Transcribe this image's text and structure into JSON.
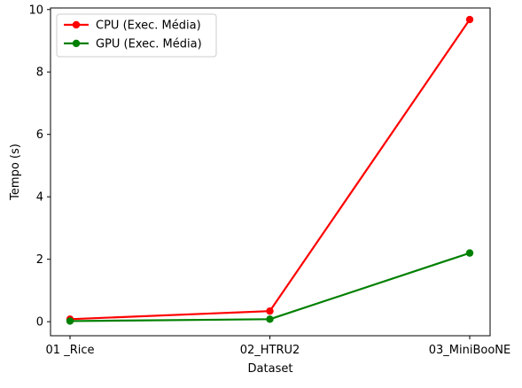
{
  "chart_data": {
    "type": "line",
    "title": "",
    "xlabel": "Dataset",
    "ylabel": "Tempo (s)",
    "categories": [
      "01 _Rice",
      "02_HTRU2",
      "03_MiniBooNE"
    ],
    "ylim": [
      -0.45,
      10.05
    ],
    "yticks": [
      0,
      2,
      4,
      6,
      8,
      10
    ],
    "grid": false,
    "legend_position": "top-left",
    "series": [
      {
        "name": "CPU (Exec. Média)",
        "color": "#ff0000",
        "values": [
          0.08,
          0.34,
          9.68
        ]
      },
      {
        "name": "GPU (Exec. Média)",
        "color": "#008000",
        "values": [
          0.02,
          0.08,
          2.2
        ]
      }
    ]
  }
}
